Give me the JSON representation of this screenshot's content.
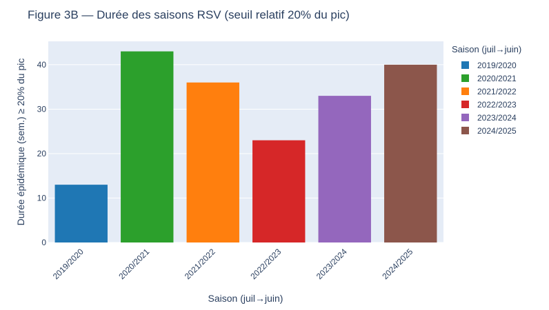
{
  "chart_data": {
    "type": "bar",
    "title": "Figure 3B — Durée des saisons RSV (seuil relatif 20% du pic)",
    "xlabel": "Saison (juil→juin)",
    "ylabel": "Durée épidémique (sem.) ≥ 20% du pic",
    "categories": [
      "2019/2020",
      "2020/2021",
      "2021/2022",
      "2022/2023",
      "2023/2024",
      "2024/2025"
    ],
    "values": [
      13,
      43,
      36,
      23,
      33,
      40
    ],
    "colors": [
      "#1f77b4",
      "#2ca02c",
      "#ff7f0e",
      "#d62728",
      "#9467bd",
      "#8c564b"
    ],
    "ylim": [
      0,
      45.26
    ],
    "yticks": [
      0,
      10,
      20,
      30,
      40
    ],
    "grid": true,
    "legend_title": "Saison (juil→juin)",
    "legend_position": "right",
    "plot_background": "#e5ecf6"
  }
}
